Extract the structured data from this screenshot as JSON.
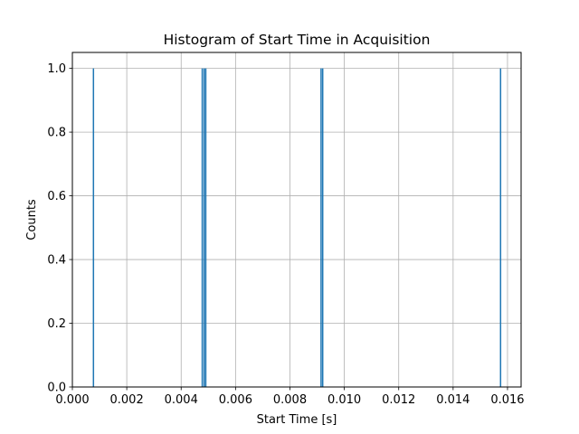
{
  "chart_data": {
    "type": "bar",
    "title": "Histogram of Start Time in Acquisition",
    "xlabel": "Start Time [s]",
    "ylabel": "Counts",
    "xlim": [
      0.0,
      0.0165
    ],
    "ylim": [
      0.0,
      1.05
    ],
    "x_ticks": [
      "0.000",
      "0.002",
      "0.004",
      "0.006",
      "0.008",
      "0.010",
      "0.012",
      "0.014",
      "0.016"
    ],
    "y_ticks": [
      "0.0",
      "0.2",
      "0.4",
      "0.6",
      "0.8",
      "1.0"
    ],
    "grid": true,
    "bar_color": "#1f77b4",
    "bin_width": 5e-05,
    "bins": [
      {
        "start": 0.00075,
        "count": 1
      },
      {
        "start": 0.00475,
        "count": 1
      },
      {
        "start": 0.00482,
        "count": 1
      },
      {
        "start": 0.00488,
        "count": 1
      },
      {
        "start": 0.00912,
        "count": 1
      },
      {
        "start": 0.00918,
        "count": 1
      },
      {
        "start": 0.01572,
        "count": 1
      }
    ]
  }
}
